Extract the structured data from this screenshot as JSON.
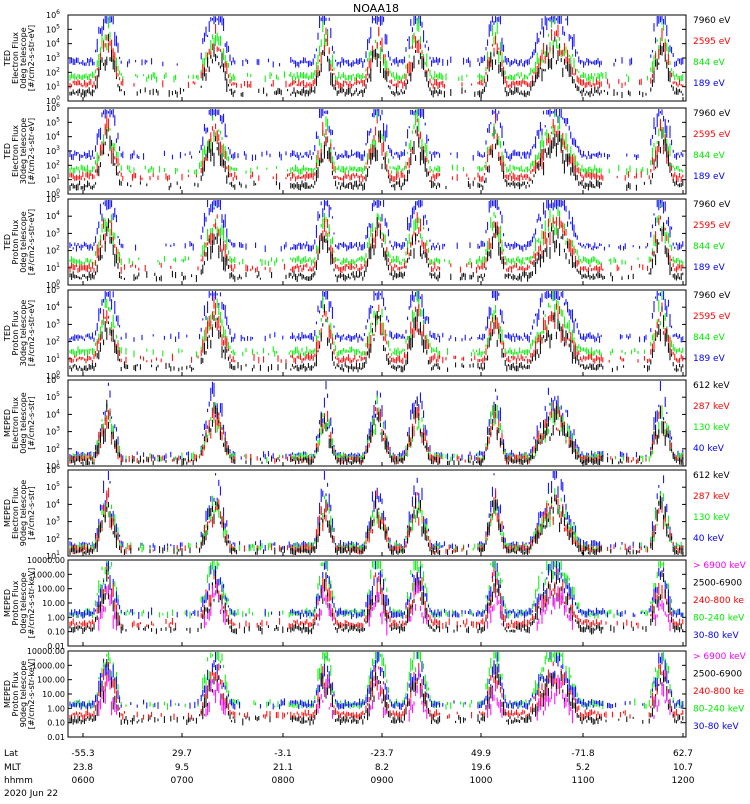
{
  "title": "NOAA18",
  "time_ticks": [
    "0600",
    "0700",
    "0800",
    "0900",
    "1000",
    "1100",
    "1200"
  ],
  "ephemeris": {
    "labels": [
      "Lat",
      "MLT",
      "hhmm"
    ],
    "date": "2020 Jun 22",
    "lat": [
      "-55.3",
      "29.7",
      "-3.1",
      "-23.7",
      "49.9",
      "-71.8",
      "62.7"
    ],
    "mlt": [
      "23.8",
      "9.5",
      "21.1",
      "8.2",
      "19.6",
      "5.2",
      "10.7"
    ]
  },
  "colors": {
    "blue": "#0000ff",
    "green": "#00ee00",
    "red": "#ff0000",
    "black": "#000000",
    "magenta": "#ff00ff"
  },
  "chart_data": [
    {
      "type": "line",
      "ylabel": [
        "TED",
        "Electron Flux",
        "0deg telescope",
        "[#/cm2-s-str-eV]"
      ],
      "log": true,
      "ylim": [
        1,
        1000000
      ],
      "yticks": [
        "10^0",
        "10^1",
        "10^2",
        "10^3",
        "10^4",
        "10^5",
        "10^6"
      ],
      "legend": [
        {
          "text": "7960 eV",
          "color": "#000000"
        },
        {
          "text": "2595 eV",
          "color": "#ff0000"
        },
        {
          "text": "844 eV",
          "color": "#00ee00"
        },
        {
          "text": "189 eV",
          "color": "#0000ff"
        }
      ]
    },
    {
      "type": "line",
      "ylabel": [
        "TED",
        "Electron Flux",
        "30deg telescope",
        "[#/cm2-s-str-eV]"
      ],
      "log": true,
      "ylim": [
        1,
        1000000
      ],
      "yticks": [
        "10^0",
        "10^1",
        "10^2",
        "10^3",
        "10^4",
        "10^5",
        "10^6"
      ],
      "legend": [
        {
          "text": "7960 eV",
          "color": "#000000"
        },
        {
          "text": "2595 eV",
          "color": "#ff0000"
        },
        {
          "text": "844 eV",
          "color": "#00ee00"
        },
        {
          "text": "189 eV",
          "color": "#0000ff"
        }
      ]
    },
    {
      "type": "line",
      "ylabel": [
        "TED",
        "Proton Flux",
        "0deg telescope",
        "[#/cm2-s-str-eV]"
      ],
      "log": true,
      "ylim": [
        1,
        100000
      ],
      "yticks": [
        "10^0",
        "10^1",
        "10^2",
        "10^3",
        "10^4",
        "10^5"
      ],
      "legend": [
        {
          "text": "7960 eV",
          "color": "#000000"
        },
        {
          "text": "2595 eV",
          "color": "#ff0000"
        },
        {
          "text": "844 eV",
          "color": "#00ee00"
        },
        {
          "text": "189 eV",
          "color": "#0000ff"
        }
      ]
    },
    {
      "type": "line",
      "ylabel": [
        "TED",
        "Proton Flux",
        "30deg telescope",
        "[#/cm2-s-str-eV]"
      ],
      "log": true,
      "ylim": [
        1,
        100000
      ],
      "yticks": [
        "10^0",
        "10^1",
        "10^2",
        "10^3",
        "10^4",
        "10^5"
      ],
      "legend": [
        {
          "text": "7960 eV",
          "color": "#000000"
        },
        {
          "text": "2595 eV",
          "color": "#ff0000"
        },
        {
          "text": "844 eV",
          "color": "#00ee00"
        },
        {
          "text": "189 eV",
          "color": "#0000ff"
        }
      ]
    },
    {
      "type": "line",
      "ylabel": [
        "MEPED",
        "Electron Flux",
        "0deg telescope",
        "[#/cm2-s-str]"
      ],
      "log": true,
      "ylim": [
        10,
        1000000
      ],
      "yticks": [
        "10^1",
        "10^2",
        "10^3",
        "10^4",
        "10^5",
        "10^6"
      ],
      "legend": [
        {
          "text": "612 keV",
          "color": "#000000"
        },
        {
          "text": "287 keV",
          "color": "#ff0000"
        },
        {
          "text": "130 keV",
          "color": "#00ee00"
        },
        {
          "text": "40 keV",
          "color": "#0000ff"
        }
      ]
    },
    {
      "type": "line",
      "ylabel": [
        "MEPED",
        "Electron Flux",
        "90deg telescope",
        "[#/cm2-s-str]"
      ],
      "log": true,
      "ylim": [
        10,
        1000000
      ],
      "yticks": [
        "10^1",
        "10^2",
        "10^3",
        "10^4",
        "10^5",
        "10^6"
      ],
      "legend": [
        {
          "text": "612 keV",
          "color": "#000000"
        },
        {
          "text": "287 keV",
          "color": "#ff0000"
        },
        {
          "text": "130 keV",
          "color": "#00ee00"
        },
        {
          "text": "40 keV",
          "color": "#0000ff"
        }
      ]
    },
    {
      "type": "line",
      "ylabel": [
        "MEPED",
        "Proton Flux",
        "0deg telescope",
        "[#/cm2-s-str-keV]"
      ],
      "log": true,
      "ylim": [
        0.01,
        10000
      ],
      "yticks": [
        "0.01",
        "0.10",
        "1.00",
        "10.00",
        "100.00",
        "1000.00",
        "10000.00"
      ],
      "legend": [
        {
          "text": "> 6900 keV",
          "color": "#ff00ff"
        },
        {
          "text": "2500-6900",
          "color": "#000000"
        },
        {
          "text": "240-800 ke",
          "color": "#ff0000"
        },
        {
          "text": "80-240 keV",
          "color": "#00ee00"
        },
        {
          "text": "30-80 keV",
          "color": "#0000ff"
        }
      ]
    },
    {
      "type": "line",
      "ylabel": [
        "MEPED",
        "Proton Flux",
        "90deg telescope",
        "[#/cm2-s-str-keV]"
      ],
      "log": true,
      "ylim": [
        0.01,
        10000
      ],
      "yticks": [
        "0.01",
        "0.10",
        "1.00",
        "10.00",
        "100.00",
        "1000.00",
        "10000.00"
      ],
      "legend": [
        {
          "text": "> 6900 keV",
          "color": "#ff00ff"
        },
        {
          "text": "2500-6900",
          "color": "#000000"
        },
        {
          "text": "240-800 ke",
          "color": "#ff0000"
        },
        {
          "text": "80-240 keV",
          "color": "#00ee00"
        },
        {
          "text": "30-80 keV",
          "color": "#0000ff"
        }
      ]
    }
  ]
}
